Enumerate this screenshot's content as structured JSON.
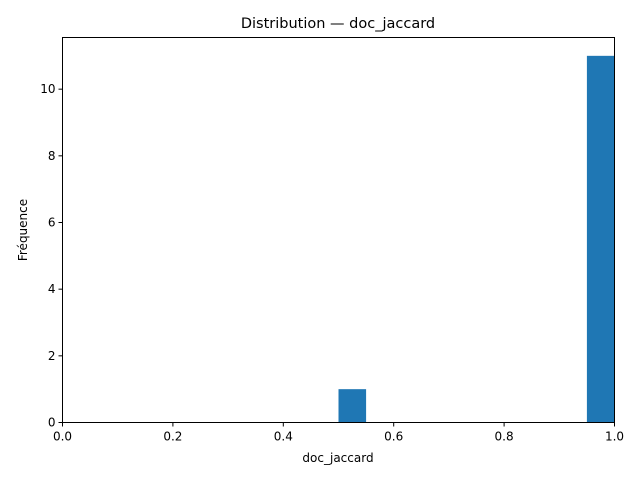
{
  "chart_data": {
    "type": "bar",
    "title": "Distribution — doc_jaccard",
    "xlabel": "doc_jaccard",
    "ylabel": "Fréquence",
    "xlim": [
      0.0,
      1.0
    ],
    "ylim": [
      0,
      11.55
    ],
    "bin_width": 0.05,
    "bars": [
      {
        "x0": 0.5,
        "x1": 0.55,
        "value": 1
      },
      {
        "x0": 0.95,
        "x1": 1.0,
        "value": 11
      }
    ],
    "xticks": [
      {
        "value": 0.0,
        "label": "0.0"
      },
      {
        "value": 0.2,
        "label": "0.2"
      },
      {
        "value": 0.4,
        "label": "0.4"
      },
      {
        "value": 0.6,
        "label": "0.6"
      },
      {
        "value": 0.8,
        "label": "0.8"
      },
      {
        "value": 1.0,
        "label": "1.0"
      }
    ],
    "yticks": [
      {
        "value": 0,
        "label": "0"
      },
      {
        "value": 2,
        "label": "2"
      },
      {
        "value": 4,
        "label": "4"
      },
      {
        "value": 6,
        "label": "6"
      },
      {
        "value": 8,
        "label": "8"
      },
      {
        "value": 10,
        "label": "10"
      }
    ],
    "bar_color": "#1f77b4",
    "grid": false,
    "legend": false
  }
}
